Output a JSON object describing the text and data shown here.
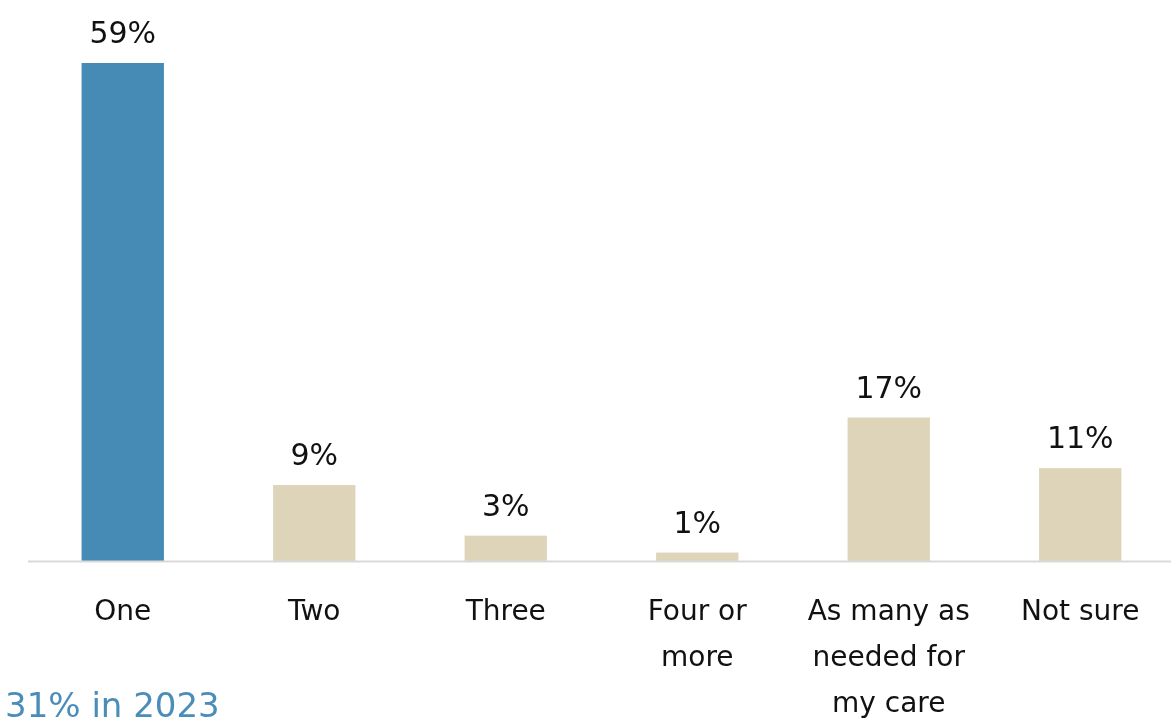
{
  "chart_data": {
    "type": "bar",
    "categories": [
      "One",
      "Two",
      "Three",
      "Four or more",
      "As many as needed for my care",
      "Not sure"
    ],
    "values": [
      59,
      9,
      3,
      1,
      17,
      11
    ],
    "colors": [
      "#468bb6",
      "#ddd4ba",
      "#ddd4ba",
      "#ddd4ba",
      "#ddd4ba",
      "#ddd4ba"
    ],
    "value_labels": [
      "59%",
      "9%",
      "3%",
      "1%",
      "17%",
      "11%"
    ],
    "annotations": [
      "31% in 2023"
    ]
  }
}
